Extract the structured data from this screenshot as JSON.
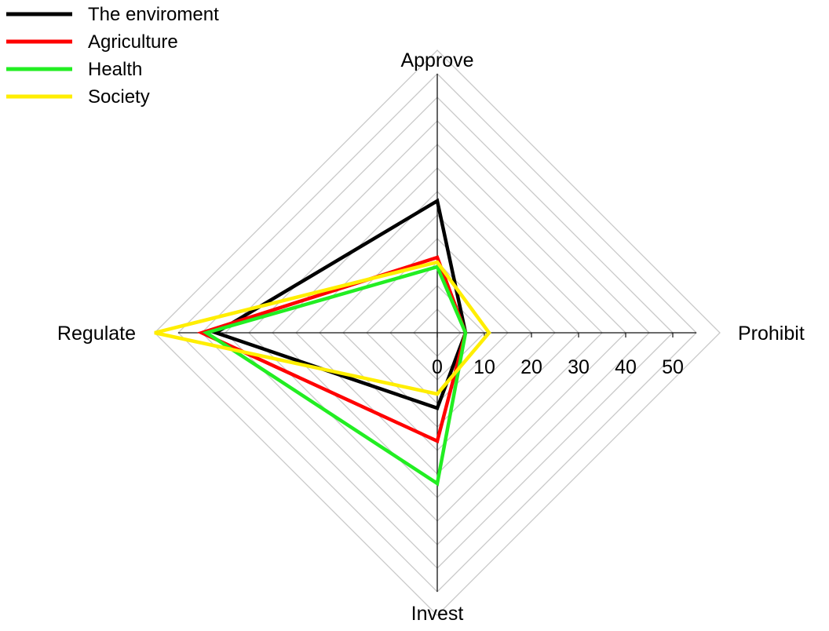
{
  "chart_data": {
    "type": "radar",
    "axes": [
      "Approve",
      "Prohibit",
      "Invest",
      "Regulate"
    ],
    "range": [
      0,
      50
    ],
    "tick_values": [
      0,
      10,
      20,
      30,
      40,
      50
    ],
    "tick_labels": [
      "0",
      "10",
      "20",
      "30",
      "40",
      "50"
    ],
    "gridlines": true,
    "legend_position": "top-left",
    "series": [
      {
        "name": "The enviroment",
        "color": "#000000",
        "values": [
          28,
          6,
          16,
          47
        ]
      },
      {
        "name": "Agriculture",
        "color": "#ff0000",
        "values": [
          16,
          6,
          23,
          50
        ]
      },
      {
        "name": "Health",
        "color": "#22ee22",
        "values": [
          14,
          6,
          32,
          49
        ]
      },
      {
        "name": "Society",
        "color": "#ffee00",
        "values": [
          15,
          11,
          13,
          60
        ]
      }
    ]
  }
}
